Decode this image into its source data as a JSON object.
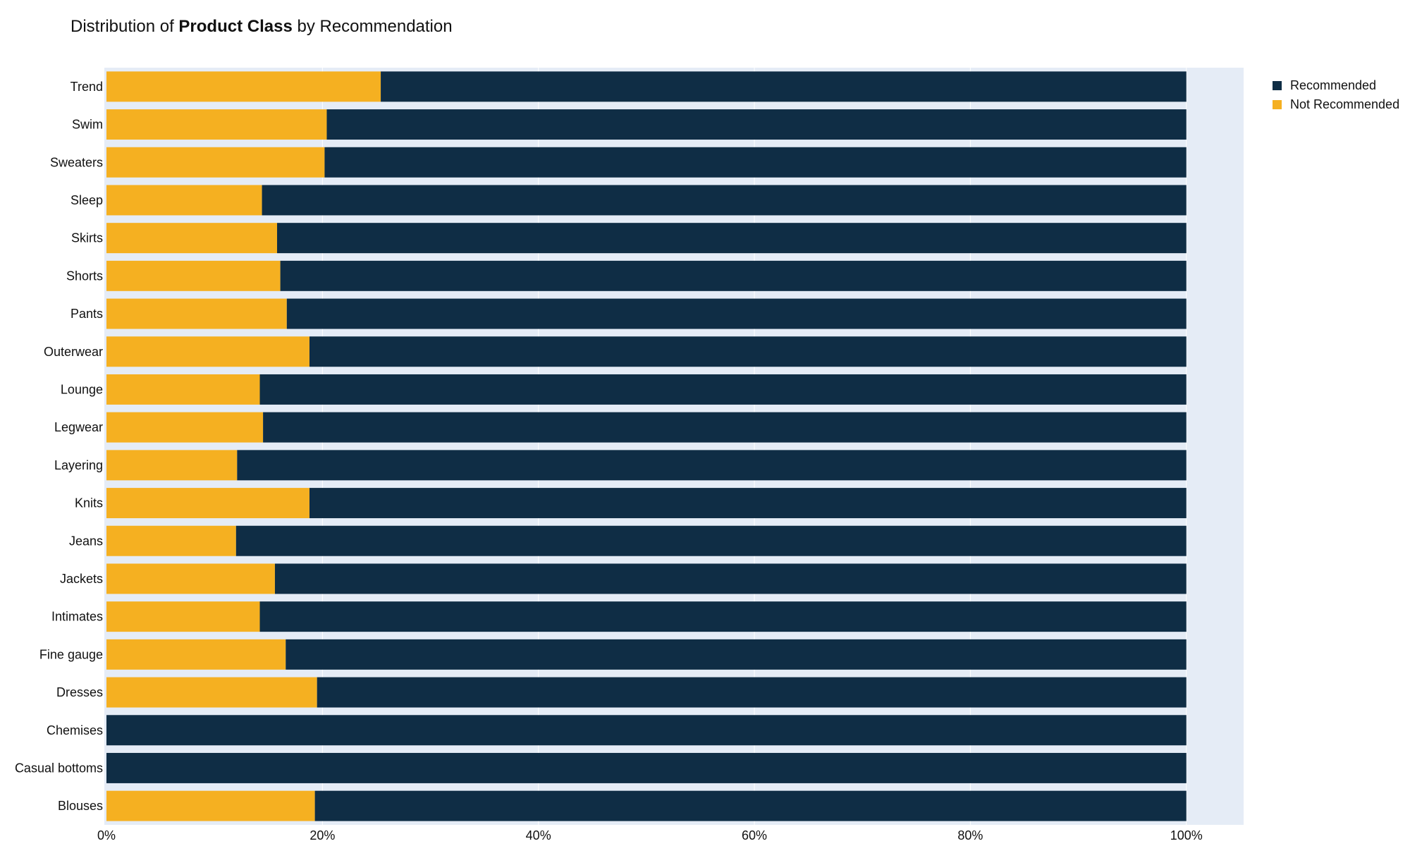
{
  "chart_data": {
    "type": "bar",
    "orientation": "horizontal",
    "stacked": true,
    "title": {
      "prefix": "Distribution of ",
      "bold": "Product Class",
      "suffix": " by Recommendation"
    },
    "xlabel": "",
    "ylabel": "",
    "xlim": [
      0,
      105.5
    ],
    "x_ticks": [
      {
        "value": 0,
        "label": "0%"
      },
      {
        "value": 20,
        "label": "20%"
      },
      {
        "value": 40,
        "label": "40%"
      },
      {
        "value": 60,
        "label": "60%"
      },
      {
        "value": 80,
        "label": "80%"
      },
      {
        "value": 100,
        "label": "100%"
      }
    ],
    "grid": true,
    "legend_position": "top-right",
    "categories": [
      "Trend",
      "Swim",
      "Sweaters",
      "Sleep",
      "Skirts",
      "Shorts",
      "Pants",
      "Outerwear",
      "Lounge",
      "Legwear",
      "Layering",
      "Knits",
      "Jeans",
      "Jackets",
      "Intimates",
      "Fine gauge",
      "Dresses",
      "Chemises",
      "Casual bottoms",
      "Blouses"
    ],
    "series": [
      {
        "name": "Not Recommended",
        "color": "#F5B021",
        "values": [
          25.4,
          20.4,
          20.2,
          14.4,
          15.8,
          16.1,
          16.7,
          18.8,
          14.2,
          14.5,
          12.1,
          18.8,
          12.0,
          15.6,
          14.2,
          16.6,
          19.5,
          0,
          0,
          19.3
        ]
      },
      {
        "name": "Recommended",
        "color": "#0F2D45",
        "values": [
          74.6,
          79.6,
          79.8,
          85.6,
          84.2,
          83.9,
          83.3,
          81.2,
          85.8,
          85.5,
          87.9,
          81.2,
          88.0,
          84.4,
          85.8,
          83.4,
          80.5,
          100,
          100,
          80.7
        ]
      }
    ],
    "legend": [
      {
        "name": "Recommended",
        "color": "#0F2D45"
      },
      {
        "name": "Not Recommended",
        "color": "#F5B021"
      }
    ],
    "colors": {
      "plot_background": "#E5ECF6",
      "gridline": "#FFFFFF"
    }
  }
}
